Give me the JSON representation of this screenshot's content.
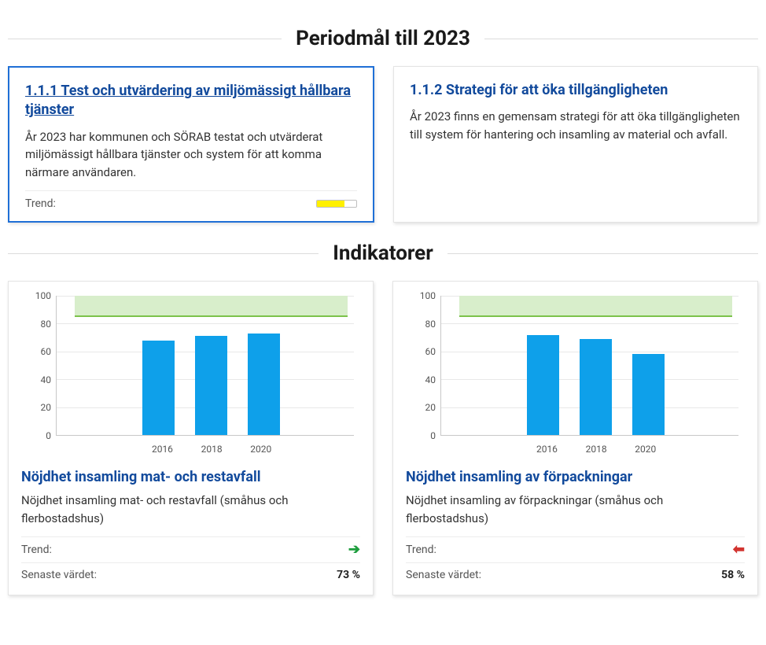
{
  "sections": {
    "periodmal_heading": "Periodmål till 2023",
    "indikatorer_heading": "Indikatorer"
  },
  "labels": {
    "trend": "Trend:",
    "latest_value": "Senaste värdet:"
  },
  "goals": [
    {
      "title": "1.1.1 Test och utvärdering av miljömässigt hållbara tjänster",
      "description": "År 2023 har kommunen och SÖRAB testat och utvärderat miljömässigt hållbara tjänster och system för att komma närmare användaren.",
      "selected": true,
      "has_trend_row": true,
      "progress_pct": 70,
      "progress_color": "#fff000"
    },
    {
      "title": "1.1.2 Strategi för att öka tillgängligheten",
      "description": "År 2023 finns en gemensam strategi för att öka tillgängligheten till system för hantering och insamling av material och avfall.",
      "selected": false,
      "has_trend_row": false
    }
  ],
  "indicators": [
    {
      "title": "Nöjdhet insamling mat- och restavfall",
      "description": "Nöjdhet insamling mat- och restavfall (småhus och flerbostadshus)",
      "trend": "up",
      "trend_color": "#1e9e3e",
      "latest_value_text": "73 %",
      "chart": {
        "type": "bar",
        "ymin": 0,
        "ymax": 100,
        "ytick_step": 20,
        "categories": [
          "2016",
          "2018",
          "2020"
        ],
        "values": [
          68,
          71,
          73
        ],
        "bar_color": "#0ea0ea",
        "target_band": {
          "low": 85,
          "high": 100,
          "fill": "#d8eecb",
          "line": "#7cc24a"
        },
        "grid_color": "#e8e8e8",
        "axis_color": "#c8c8c8",
        "label_fontsize": 12
      }
    },
    {
      "title": "Nöjdhet insamling av förpackningar",
      "description": "Nöjdhet insamling av förpackningar (småhus och flerbostadshus)",
      "trend": "down",
      "trend_color": "#d23430",
      "latest_value_text": "58 %",
      "chart": {
        "type": "bar",
        "ymin": 0,
        "ymax": 100,
        "ytick_step": 20,
        "categories": [
          "2016",
          "2018",
          "2020"
        ],
        "values": [
          72,
          69,
          58
        ],
        "bar_color": "#0ea0ea",
        "target_band": {
          "low": 85,
          "high": 100,
          "fill": "#d8eecb",
          "line": "#7cc24a"
        },
        "grid_color": "#e8e8e8",
        "axis_color": "#c8c8c8",
        "label_fontsize": 12
      }
    }
  ]
}
